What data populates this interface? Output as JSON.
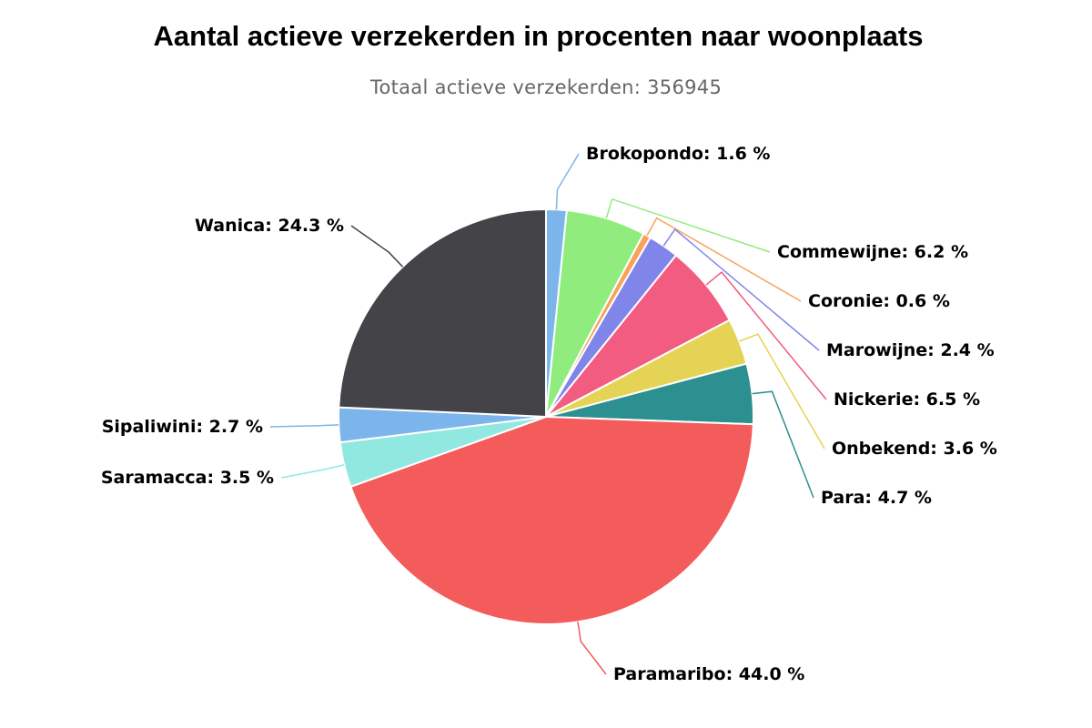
{
  "title": "Aantal actieve verzekerden in procenten naar woonplaats",
  "subtitle": "Totaal actieve verzekerden: 356945",
  "chart_data": {
    "type": "pie",
    "title": "Aantal actieve verzekerden in procenten naar woonplaats",
    "subtitle": "Totaal actieve verzekerden: 356945",
    "unit": "%",
    "legend": "none",
    "slices": [
      {
        "name": "Brokopondo",
        "value": 1.6,
        "label": "Brokopondo: 1.6 %",
        "color": "#7cb5ec"
      },
      {
        "name": "Commewijne",
        "value": 6.2,
        "label": "Commewijne: 6.2 %",
        "color": "#90ed7d"
      },
      {
        "name": "Coronie",
        "value": 0.6,
        "label": "Coronie: 0.6 %",
        "color": "#f7a35c"
      },
      {
        "name": "Marowijne",
        "value": 2.4,
        "label": "Marowijne: 2.4 %",
        "color": "#8085e9"
      },
      {
        "name": "Nickerie",
        "value": 6.5,
        "label": "Nickerie: 6.5 %",
        "color": "#f15c80"
      },
      {
        "name": "Onbekend",
        "value": 3.6,
        "label": "Onbekend: 3.6 %",
        "color": "#e4d354"
      },
      {
        "name": "Para",
        "value": 4.7,
        "label": "Para: 4.7 %",
        "color": "#2b908f"
      },
      {
        "name": "Paramaribo",
        "value": 44.0,
        "label": "Paramaribo: 44.0 %",
        "color": "#f45b5b"
      },
      {
        "name": "Saramacca",
        "value": 3.5,
        "label": "Saramacca: 3.5 %",
        "color": "#91e8e1"
      },
      {
        "name": "Sipaliwini",
        "value": 2.7,
        "label": "Sipaliwini: 2.7 %",
        "color": "#7cb5ec"
      },
      {
        "name": "Wanica",
        "value": 24.3,
        "label": "Wanica: 24.3 %",
        "color": "#434348"
      }
    ]
  }
}
